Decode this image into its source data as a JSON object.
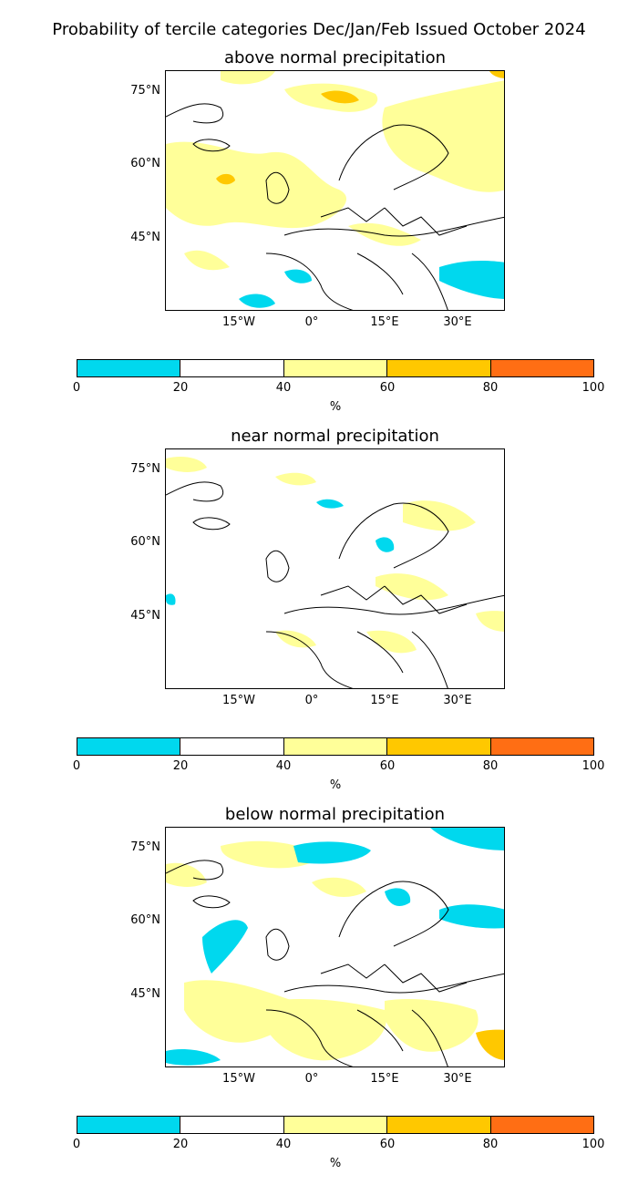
{
  "figure": {
    "title": "Probability of tercile categories Dec/Jan/Feb Issued October 2024"
  },
  "panels": [
    {
      "title": "above normal precipitation",
      "top": 0
    },
    {
      "title": "near normal precipitation"
    },
    {
      "title": "below normal precipitation"
    }
  ],
  "axes": {
    "lat_labels": [
      "75°N",
      "60°N",
      "45°N"
    ],
    "lon_labels": [
      "15°W",
      "0°",
      "15°E",
      "30°E"
    ]
  },
  "colorbar": {
    "label": "%",
    "ticks": [
      "0",
      "20",
      "40",
      "60",
      "80",
      "100"
    ],
    "colors": [
      "#00d8ee",
      "#ffffff",
      "#ffff99",
      "#ffc800",
      "#ff6e14"
    ]
  }
}
